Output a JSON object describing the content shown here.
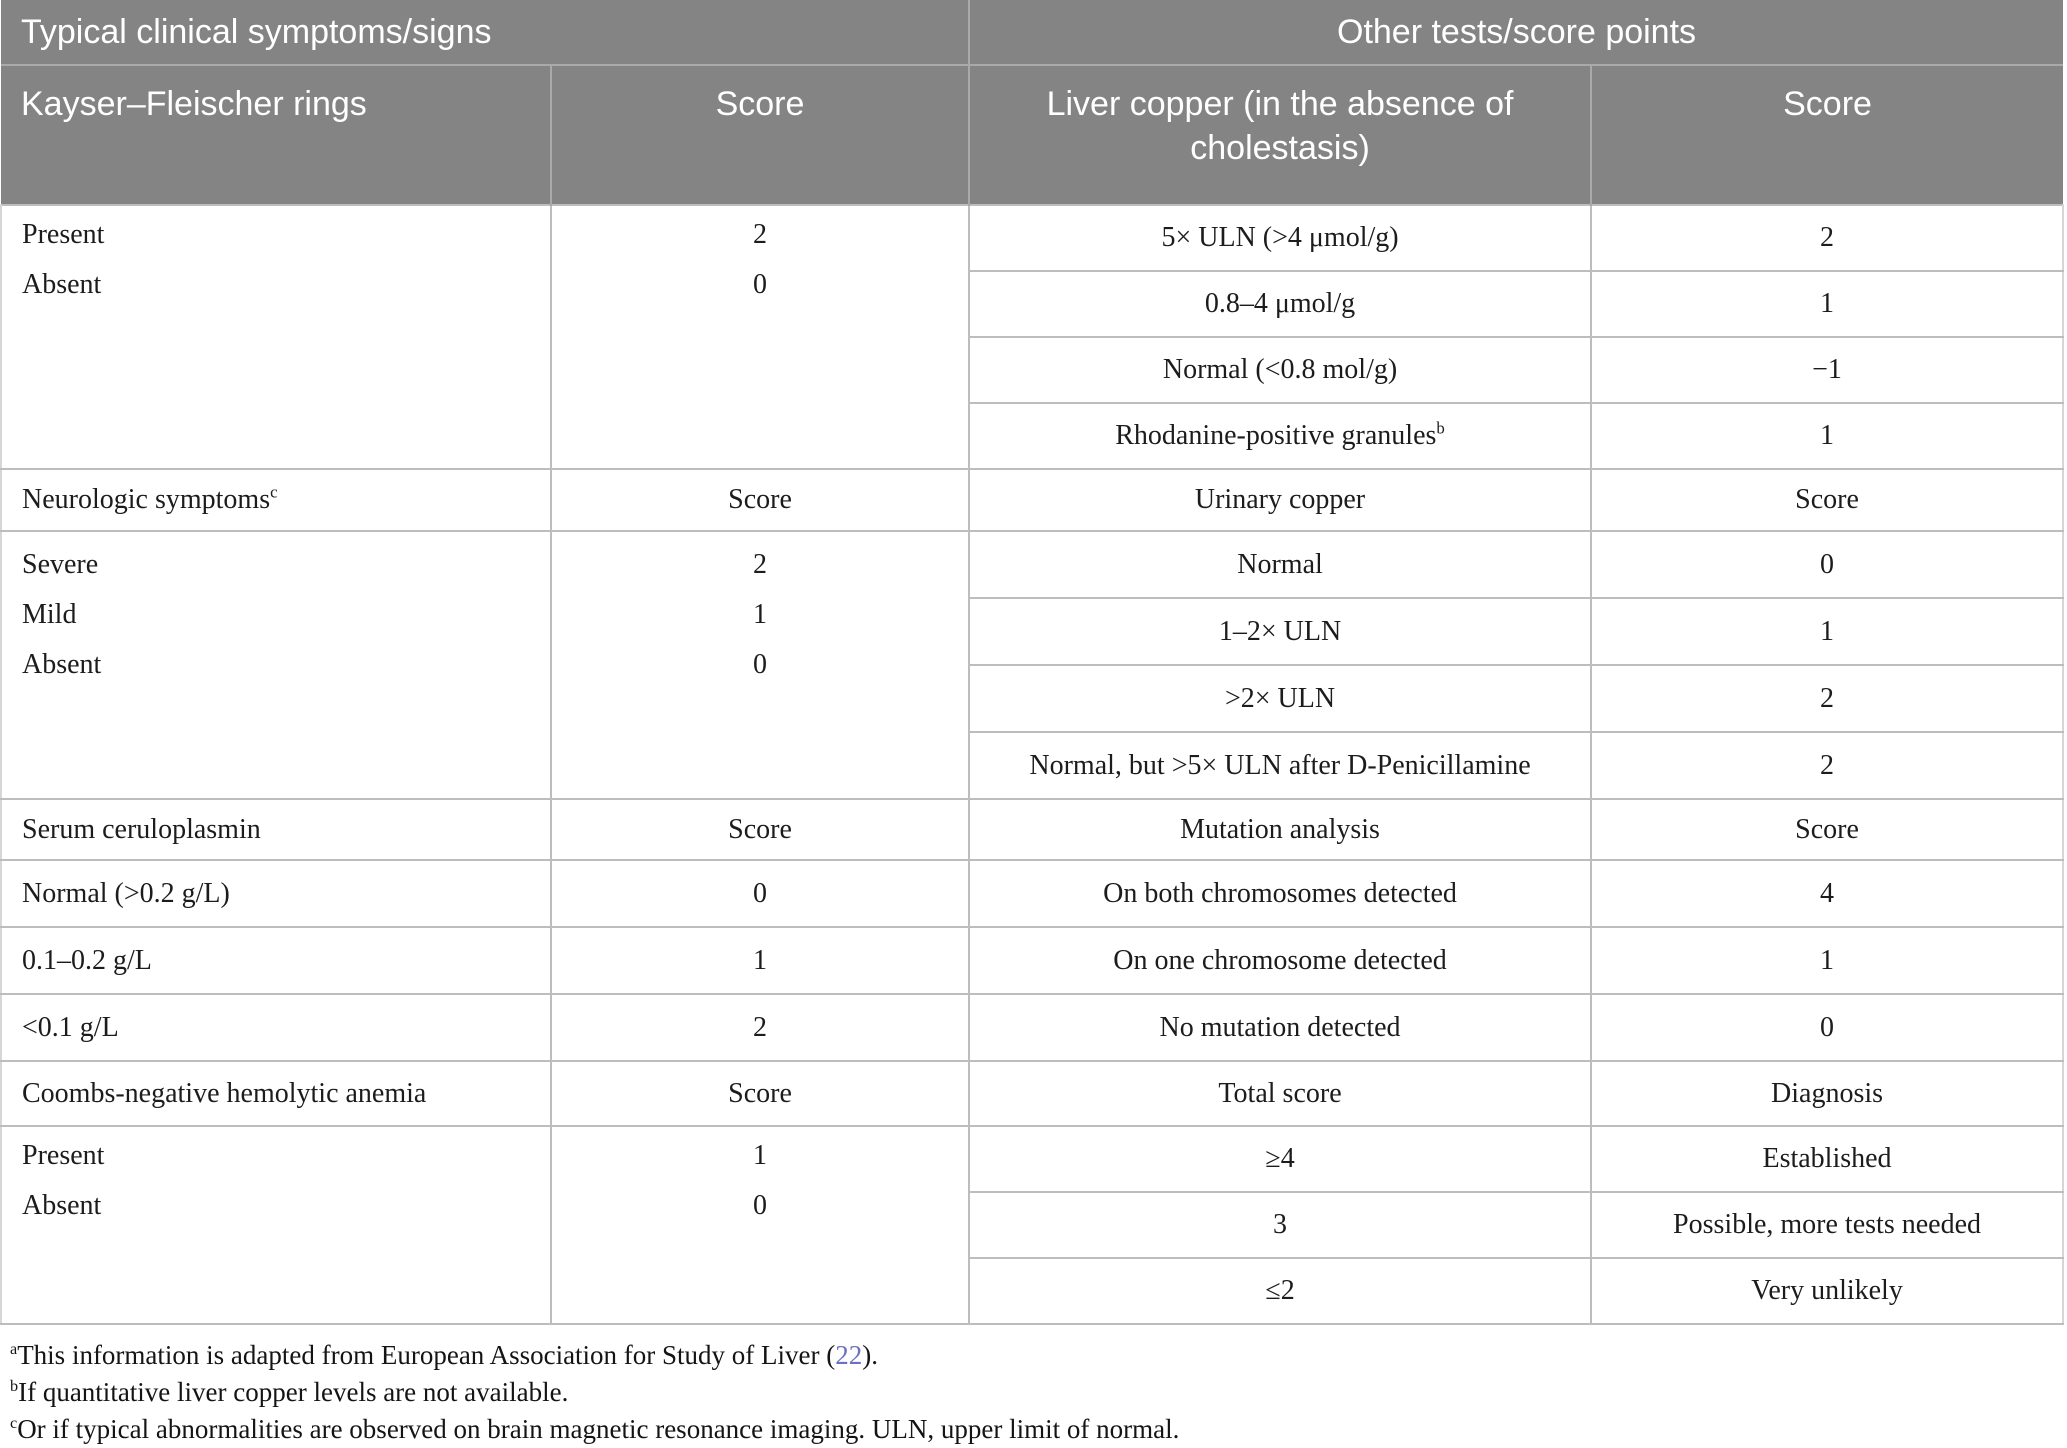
{
  "colors": {
    "header_bg": "#848484",
    "link": "#6b70c3"
  },
  "table": {
    "group_headers": {
      "left": "Typical clinical symptoms/signs",
      "right": "Other tests/score points"
    },
    "column_headers": {
      "symptom": "Kayser–Fleischer rings",
      "score_left": "Score",
      "test": "Liver copper (in the absence of cholestasis)",
      "score_right": "Score"
    },
    "left": {
      "kayser_fleischer": {
        "rows": [
          {
            "label": "Present",
            "score": "2"
          },
          {
            "label": "Absent",
            "score": "0"
          }
        ]
      },
      "neurologic": {
        "header": "Neurologic symptoms",
        "header_sup": "c",
        "score_header": "Score",
        "rows": [
          {
            "label": "Severe",
            "score": "2"
          },
          {
            "label": "Mild",
            "score": "1"
          },
          {
            "label": "Absent",
            "score": "0"
          }
        ]
      },
      "ceruloplasmin": {
        "header": "Serum ceruloplasmin",
        "score_header": "Score",
        "rows": [
          {
            "label": "Normal (>0.2 g/L)",
            "score": "0"
          },
          {
            "label": "0.1–0.2 g/L",
            "score": "1"
          },
          {
            "label": "<0.1 g/L",
            "score": "2"
          }
        ]
      },
      "anemia": {
        "header": "Coombs-negative hemolytic anemia",
        "score_header": "Score",
        "rows": [
          {
            "label": "Present",
            "score": "1"
          },
          {
            "label": "Absent",
            "score": "0"
          }
        ]
      }
    },
    "right": {
      "liver_copper": {
        "rows": [
          {
            "label": "5× ULN (>4 μmol/g)",
            "score": "2"
          },
          {
            "label": "0.8–4 μmol/g",
            "score": "1"
          },
          {
            "label": "Normal (<0.8 mol/g)",
            "score": "−1"
          },
          {
            "label": "Rhodanine-positive granules",
            "label_sup": "b",
            "score": "1"
          }
        ]
      },
      "urinary_copper": {
        "header": "Urinary copper",
        "score_header": "Score",
        "rows": [
          {
            "label": "Normal",
            "score": "0"
          },
          {
            "label": "1–2× ULN",
            "score": "1"
          },
          {
            "label": ">2× ULN",
            "score": "2"
          },
          {
            "label": "Normal, but >5× ULN after D-Penicillamine",
            "score": "2"
          }
        ]
      },
      "mutation": {
        "header": "Mutation analysis",
        "score_header": "Score",
        "rows": [
          {
            "label": "On both chromosomes detected",
            "score": "4"
          },
          {
            "label": "On one chromosome detected",
            "score": "1"
          },
          {
            "label": "No mutation detected",
            "score": "0"
          }
        ]
      },
      "total": {
        "header": "Total score",
        "diagnosis_header": "Diagnosis",
        "rows": [
          {
            "label": "≥4",
            "diagnosis": "Established"
          },
          {
            "label": "3",
            "diagnosis": "Possible, more tests needed"
          },
          {
            "label": "≤2",
            "diagnosis": "Very unlikely"
          }
        ]
      }
    }
  },
  "footnotes": {
    "a": {
      "sup": "a",
      "pre": "This information is adapted from European Association for Study of Liver (",
      "link": "22",
      "post": ")."
    },
    "b": {
      "sup": "b",
      "text": "If quantitative liver copper levels are not available."
    },
    "c": {
      "sup": "c",
      "text": "Or if typical abnormalities are observed on brain magnetic resonance imaging. ULN, upper limit of normal."
    }
  }
}
